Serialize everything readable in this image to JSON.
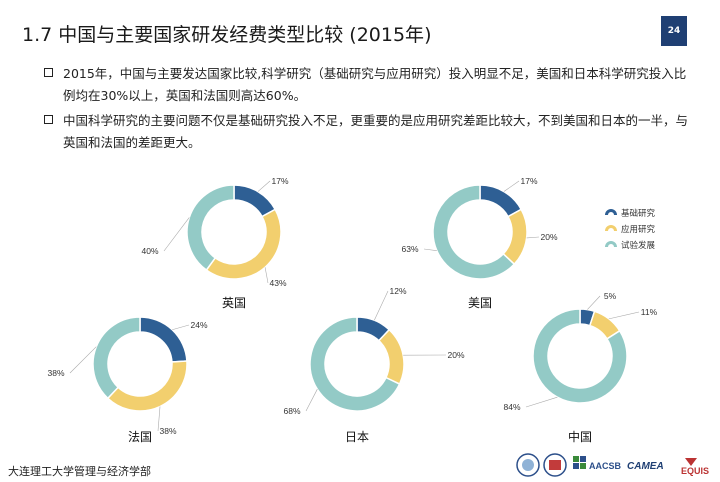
{
  "slide": {
    "title": "1.7  中国与主要国家研发经费类型比较 (2015年)",
    "page_number": "24",
    "bullets": [
      "2015年，中国与主要发达国家比较,科学研究（基础研究与应用研究）投入明显不足，美国和日本科学研究投入比例均在30%以上，英国和法国则高达60%。",
      "中国科学研究的主要问题不仅是基础研究投入不足，更重要的是应用研究差距比较大，不到美国和日本的一半，与英国和法国的差距更大。"
    ],
    "footer": "大连理工大学管理与经济学部",
    "logos": [
      "AACSB",
      "CAMEA",
      "EQUIS"
    ]
  },
  "chart_data": {
    "type": "donut",
    "series_names": [
      "基础研究",
      "应用研究",
      "试验发展"
    ],
    "colors": [
      "#2e5f94",
      "#f2cf6e",
      "#93cac6"
    ],
    "legend_position": "right",
    "charts": [
      {
        "country": "英国",
        "values": [
          17,
          43,
          40
        ],
        "labels": [
          "17%",
          "43%",
          "40%"
        ]
      },
      {
        "country": "美国",
        "values": [
          17,
          20,
          63
        ],
        "labels": [
          "17%",
          "20%",
          "63%"
        ]
      },
      {
        "country": "法国",
        "values": [
          24,
          38,
          38
        ],
        "labels": [
          "24%",
          "38%",
          "38%"
        ]
      },
      {
        "country": "日本",
        "values": [
          12,
          20,
          68
        ],
        "labels": [
          "12%",
          "20%",
          "68%"
        ]
      },
      {
        "country": "中国",
        "values": [
          5,
          11,
          84
        ],
        "labels": [
          "5%",
          "11%",
          "84%"
        ]
      }
    ]
  }
}
